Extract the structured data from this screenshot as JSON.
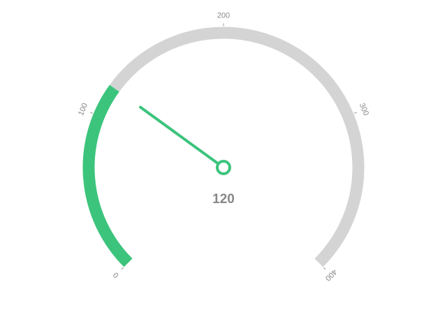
{
  "chart_data": {
    "type": "gauge",
    "min": 0,
    "max": 400,
    "value": 120,
    "value_label": "120",
    "ticks": [
      {
        "value": 0,
        "label": "0"
      },
      {
        "value": 100,
        "label": "100"
      },
      {
        "value": 200,
        "label": "200"
      },
      {
        "value": 300,
        "label": "300"
      },
      {
        "value": 400,
        "label": "400"
      }
    ],
    "colors": {
      "progress": "#3CC47C",
      "track": "#D4D4D4",
      "needle": "#3CC47C",
      "label": "#888888",
      "tick_line": "#999999"
    }
  }
}
